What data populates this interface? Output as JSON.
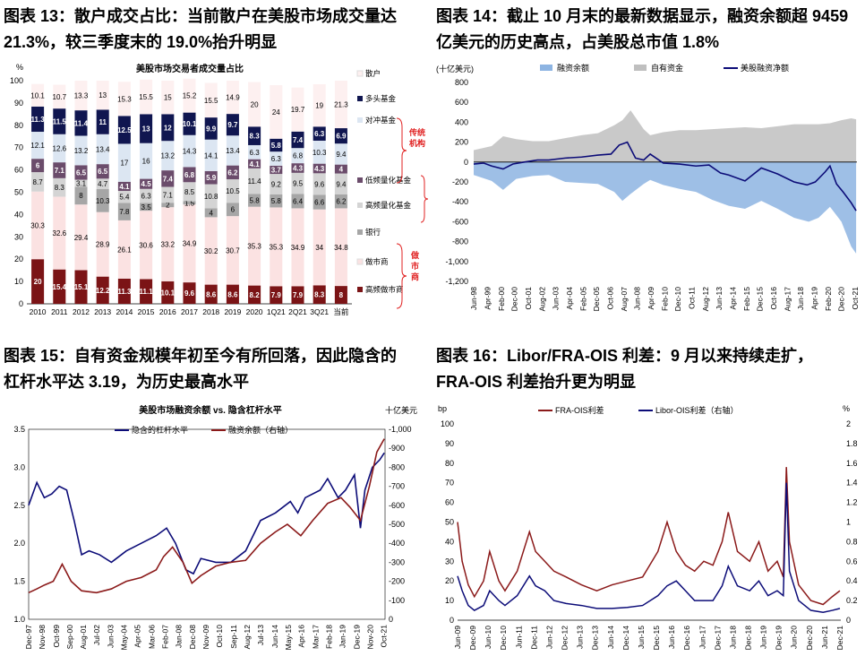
{
  "titles": {
    "fig13_l1": "图表 13：散户成交占比：当前散户在美股市场成交量达",
    "fig13_l2": "21.3%，较三季度末的 19.0%抬升明显",
    "fig14_l1": "图表 14：截止 10 月末的最新数据显示，融资余额超 9459",
    "fig14_l2": "亿美元的历史高点，占美股总市值 1.8%",
    "fig15_l1": "图表 15：自有资金规模年初至今有所回落，因此隐含的",
    "fig15_l2": "杠杆水平达 3.19，为历史最高水平",
    "fig16_l1": "图表 16：Libor/FRA-OIS 利差：9 月以来持续走扩，",
    "fig16_l2": "FRA-OIS 利差抬升更为明显"
  },
  "chart_data": [
    {
      "id": "fig13",
      "type": "bar",
      "stacked": true,
      "title": "美股市场交易者成交量占比",
      "ylabel": "%",
      "ylim": [
        0,
        100
      ],
      "yticks": [
        0,
        10,
        20,
        30,
        40,
        50,
        60,
        70,
        80,
        90,
        100
      ],
      "categories": [
        "2010",
        "2011",
        "2012",
        "2013",
        "2014",
        "2015",
        "2016",
        "2017",
        "2018",
        "2019",
        "2020",
        "1Q21",
        "2Q21",
        "3Q21",
        "当前"
      ],
      "series": [
        {
          "name": "高频做市商",
          "color": "#7b1416",
          "label_color": "#ffffff",
          "values": [
            20,
            15.4,
            15.1,
            12.2,
            11.3,
            11.1,
            10.1,
            9.6,
            8.6,
            8.6,
            8.2,
            7.9,
            7.9,
            8.3,
            8
          ]
        },
        {
          "name": "做市商",
          "color": "#fbe2e2",
          "label_color": "#000000",
          "values": [
            30.3,
            32.6,
            29.4,
            28.9,
            26.1,
            30.6,
            33.2,
            34.9,
            30.2,
            30.7,
            35.3,
            35.3,
            34.9,
            34,
            34.8
          ]
        },
        {
          "name": "银行",
          "color": "#a6a6a6",
          "label_color": "#000000",
          "values": [
            null,
            null,
            8,
            10.3,
            7.8,
            3.5,
            2,
            1.5,
            4,
            6,
            5.8,
            5.8,
            6.4,
            6.6,
            6.2
          ]
        },
        {
          "name": "高频量化基金",
          "color": "#d4d4d4",
          "label_color": "#000000",
          "values": [
            8.7,
            8.3,
            3.1,
            4.7,
            5.4,
            6.3,
            7.1,
            8.5,
            10.8,
            10.5,
            11.4,
            9.2,
            9.5,
            9.6,
            9.4
          ]
        },
        {
          "name": "低频量化基金",
          "color": "#6b4c6b",
          "label_color": "#ffffff",
          "values": [
            6,
            7.1,
            6.5,
            6.5,
            4.1,
            4.5,
            7.4,
            6.8,
            5.9,
            6.2,
            4.1,
            3.7,
            4.3,
            4.3,
            4
          ]
        },
        {
          "name": "对冲基金",
          "color": "#dce6f2",
          "label_color": "#000000",
          "values": [
            12.1,
            12.6,
            13.2,
            13.4,
            17,
            16,
            13.2,
            14.3,
            14.1,
            13.4,
            6.3,
            6.3,
            6.8,
            10.3,
            9.4
          ]
        },
        {
          "name": "多头基金",
          "color": "#101650",
          "label_color": "#ffffff",
          "values": [
            11.3,
            11.5,
            11.4,
            11,
            12.5,
            13,
            12,
            10.1,
            9.9,
            9.7,
            8.3,
            5.8,
            7.4,
            6.3,
            6.9
          ]
        },
        {
          "name": "散户",
          "color": "#fdf0f0",
          "label_color": "#000000",
          "values": [
            10.1,
            10.7,
            13.3,
            13,
            15.3,
            15.5,
            15,
            15.2,
            15.5,
            14.9,
            20,
            24,
            19.7,
            19,
            21.3
          ]
        }
      ],
      "annotations": [
        "传统机构",
        "做市商"
      ]
    },
    {
      "id": "fig14",
      "type": "area",
      "ylabel": "(十亿美元)",
      "ylim": [
        -1200,
        800
      ],
      "yticks": [
        800,
        600,
        400,
        200,
        0,
        -200,
        -400,
        -600,
        -800,
        -1000,
        -1200
      ],
      "xticks": [
        "Jun-98",
        "Apr-99",
        "Feb-00",
        "Dec-00",
        "Oct-01",
        "Aug-02",
        "Jun-03",
        "Apr-04",
        "Feb-05",
        "Dec-05",
        "Oct-06",
        "Aug-07",
        "Jun-08",
        "Apr-09",
        "Feb-10",
        "Dec-10",
        "Oct-11",
        "Aug-12",
        "Jun-13",
        "Apr-14",
        "Feb-15",
        "Dec-15",
        "Oct-16",
        "Aug-17",
        "Jun-18",
        "Apr-19",
        "Feb-20",
        "Dec-20",
        "Oct-21"
      ],
      "x_years": [
        1998.4,
        1999.25,
        2000.1,
        2000.9,
        2001.75,
        2002.6,
        2003.4,
        2004.25,
        2005.1,
        2005.9,
        2006.75,
        2007.6,
        2008.4,
        2009.25,
        2010.1,
        2010.9,
        2011.75,
        2012.6,
        2013.4,
        2014.25,
        2015.1,
        2015.9,
        2016.75,
        2017.6,
        2018.4,
        2019.25,
        2020.1,
        2020.9,
        2021.75
      ],
      "series": [
        {
          "name": "融资余额",
          "color": "#8db4e2",
          "x": [
            1998.4,
            1999.5,
            2000.2,
            2001.0,
            2002.0,
            2003.0,
            2004.0,
            2005.0,
            2006.0,
            2007.0,
            2007.5,
            2008.0,
            2008.8,
            2009.2,
            2010.0,
            2011.0,
            2012.0,
            2013.0,
            2014.0,
            2015.0,
            2016.0,
            2017.0,
            2018.0,
            2018.9,
            2019.5,
            2020.2,
            2020.9,
            2021.5,
            2021.8
          ],
          "values": [
            -130,
            -190,
            -280,
            -170,
            -140,
            -130,
            -200,
            -210,
            -220,
            -300,
            -390,
            -320,
            -220,
            -180,
            -230,
            -270,
            -300,
            -380,
            -440,
            -470,
            -390,
            -470,
            -560,
            -600,
            -560,
            -450,
            -600,
            -850,
            -920
          ]
        },
        {
          "name": "自有资金",
          "color": "#bfbfbf",
          "x": [
            1998.4,
            1999.5,
            2000.2,
            2001.0,
            2002.0,
            2003.0,
            2004.0,
            2005.0,
            2006.0,
            2007.0,
            2007.5,
            2008.0,
            2008.8,
            2009.2,
            2010.0,
            2011.0,
            2012.0,
            2013.0,
            2014.0,
            2015.0,
            2016.0,
            2017.0,
            2018.0,
            2018.9,
            2019.5,
            2020.2,
            2020.9,
            2021.5,
            2021.8
          ],
          "values": [
            120,
            160,
            260,
            230,
            210,
            210,
            240,
            270,
            290,
            370,
            420,
            520,
            330,
            270,
            300,
            320,
            320,
            330,
            340,
            350,
            340,
            360,
            380,
            380,
            380,
            390,
            420,
            440,
            430
          ]
        },
        {
          "name": "美股融资净额",
          "color": "#0c0c78",
          "x": [
            1998.4,
            1999.0,
            1999.5,
            2000.2,
            2000.8,
            2001.5,
            2002.3,
            2003.0,
            2004.0,
            2005.0,
            2006.0,
            2006.8,
            2007.3,
            2007.8,
            2008.3,
            2008.8,
            2009.2,
            2010.0,
            2011.0,
            2012.0,
            2012.8,
            2013.5,
            2014.0,
            2015.0,
            2016.0,
            2016.5,
            2017.0,
            2018.0,
            2018.8,
            2019.3,
            2019.9,
            2020.2,
            2020.6,
            2021.0,
            2021.5,
            2021.8
          ],
          "values": [
            -20,
            -10,
            -40,
            -70,
            -20,
            0,
            20,
            20,
            40,
            50,
            70,
            80,
            170,
            200,
            40,
            20,
            80,
            -10,
            -20,
            -40,
            -30,
            -110,
            -130,
            -190,
            -60,
            -90,
            -120,
            -200,
            -230,
            -200,
            -100,
            -40,
            -220,
            -300,
            -410,
            -490
          ]
        }
      ]
    },
    {
      "id": "fig15",
      "type": "line",
      "title": "美股市场融资余额 vs. 隐含杠杆水平",
      "ylabel_right": "十亿美元",
      "ylim": [
        1.0,
        3.5
      ],
      "yticks": [
        1.0,
        1.5,
        2.0,
        2.5,
        3.0,
        3.5
      ],
      "y2lim": [
        0,
        -1000
      ],
      "y2ticks": [
        "0",
        "-100",
        "-200",
        "-300",
        "-400",
        "-500",
        "-600",
        "-700",
        "-800",
        "-900",
        "-1,000"
      ],
      "xticks": [
        "Dec-97",
        "Nov-98",
        "Oct-99",
        "Sep-00",
        "Aug-01",
        "Jul-02",
        "Jun-03",
        "May-04",
        "Apr-05",
        "Mar-06",
        "Feb-07",
        "Jan-08",
        "Dec-08",
        "Nov-09",
        "Oct-10",
        "Sep-11",
        "Aug-12",
        "Jul-13",
        "Jun-14",
        "May-15",
        "Apr-16",
        "Mar-17",
        "Feb-18",
        "Jan-19",
        "Dec-19",
        "Nov-20",
        "Oct-21"
      ],
      "x_years": [
        1997.95,
        1998.85,
        1999.8,
        2000.7,
        2001.6,
        2002.5,
        2003.45,
        2004.35,
        2005.25,
        2006.2,
        2007.1,
        2008.0,
        2008.95,
        2009.85,
        2010.75,
        2011.7,
        2012.6,
        2013.5,
        2014.45,
        2015.35,
        2016.25,
        2017.2,
        2018.1,
        2019.0,
        2019.95,
        2020.85,
        2021.75
      ],
      "series": [
        {
          "name": "隐含的杠杆水平",
          "axis": "left",
          "color": "#0c0c78",
          "x": [
            1997.95,
            1998.5,
            1999.0,
            1999.5,
            2000.0,
            2000.5,
            2001.0,
            2001.5,
            2002.0,
            2002.7,
            2003.5,
            2004.5,
            2005.5,
            2006.5,
            2007.2,
            2007.8,
            2008.5,
            2009.0,
            2009.5,
            2010.5,
            2011.5,
            2012.5,
            2013.5,
            2014.5,
            2015.5,
            2016.0,
            2016.5,
            2017.5,
            2018.0,
            2018.7,
            2019.2,
            2019.8,
            2020.2,
            2020.5,
            2021.0,
            2021.5,
            2021.8
          ],
          "values": [
            2.5,
            2.8,
            2.6,
            2.65,
            2.75,
            2.7,
            2.3,
            1.85,
            1.9,
            1.85,
            1.75,
            1.9,
            2.0,
            2.1,
            2.2,
            2.0,
            1.65,
            1.6,
            1.8,
            1.75,
            1.75,
            1.9,
            2.3,
            2.4,
            2.55,
            2.4,
            2.6,
            2.7,
            2.85,
            2.6,
            2.7,
            2.9,
            2.2,
            2.7,
            3.0,
            3.1,
            3.19
          ]
        },
        {
          "name": "融资余额（右轴）",
          "axis": "right",
          "color": "#8b1a1a",
          "x": [
            1997.95,
            1998.5,
            1999.0,
            1999.6,
            2000.2,
            2000.8,
            2001.5,
            2002.5,
            2003.5,
            2004.5,
            2005.5,
            2006.5,
            2007.0,
            2007.6,
            2008.3,
            2008.9,
            2009.5,
            2010.5,
            2011.5,
            2012.5,
            2013.5,
            2014.5,
            2015.3,
            2016.2,
            2017.0,
            2018.0,
            2018.9,
            2019.5,
            2020.2,
            2020.8,
            2021.3,
            2021.8
          ],
          "values": [
            -140,
            -160,
            -180,
            -200,
            -290,
            -200,
            -150,
            -140,
            -160,
            -200,
            -220,
            -260,
            -330,
            -380,
            -300,
            -190,
            -230,
            -280,
            -300,
            -310,
            -400,
            -460,
            -500,
            -440,
            -520,
            -610,
            -640,
            -590,
            -520,
            -700,
            -880,
            -950
          ]
        }
      ]
    },
    {
      "id": "fig16",
      "type": "line",
      "ylabel": "bp",
      "ylabel_right": "%",
      "ylim": [
        0,
        100
      ],
      "yticks": [
        0,
        10,
        20,
        30,
        40,
        50,
        60,
        70,
        80,
        90,
        100
      ],
      "y2lim": [
        0,
        2
      ],
      "y2ticks": [
        "0",
        "0.2",
        "0.4",
        "0.6",
        "0.8",
        "1",
        "1.2",
        "1.4",
        "1.6",
        "1.8",
        "2"
      ],
      "xticks": [
        "Jun-09",
        "Dec-09",
        "Jun-10",
        "Dec-10",
        "Jun-11",
        "Dec-11",
        "Jun-12",
        "Dec-12",
        "Jun-13",
        "Dec-13",
        "Jun-14",
        "Dec-14",
        "Jun-15",
        "Dec-15",
        "Jun-16",
        "Dec-16",
        "Jun-17",
        "Dec-17",
        "Jun-18",
        "Dec-18",
        "Jun-19",
        "Dec-19",
        "Jun-20",
        "Dec-20",
        "Jun-21",
        "Dec-21"
      ],
      "x_years": [
        2009.45,
        2009.95,
        2010.45,
        2010.95,
        2011.45,
        2011.95,
        2012.45,
        2012.95,
        2013.45,
        2013.95,
        2014.45,
        2014.95,
        2015.45,
        2015.95,
        2016.45,
        2016.95,
        2017.45,
        2017.95,
        2018.45,
        2018.95,
        2019.45,
        2019.95,
        2020.45,
        2020.95,
        2021.45,
        2021.95
      ],
      "series": [
        {
          "name": "FRA-OIS利差",
          "axis": "left",
          "color": "#8b1a1a",
          "x": [
            2009.45,
            2009.6,
            2009.8,
            2010.0,
            2010.3,
            2010.5,
            2010.8,
            2011.0,
            2011.4,
            2011.8,
            2012.0,
            2012.3,
            2012.6,
            2013.0,
            2013.5,
            2014.0,
            2014.5,
            2015.0,
            2015.5,
            2016.0,
            2016.3,
            2016.6,
            2016.9,
            2017.2,
            2017.5,
            2017.8,
            2018.1,
            2018.3,
            2018.6,
            2019.0,
            2019.3,
            2019.6,
            2019.9,
            2020.1,
            2020.2,
            2020.3,
            2020.6,
            2021.0,
            2021.4,
            2021.7,
            2021.95
          ],
          "values": [
            50,
            30,
            18,
            12,
            20,
            35,
            20,
            15,
            25,
            45,
            35,
            30,
            25,
            22,
            18,
            15,
            18,
            20,
            22,
            35,
            50,
            35,
            28,
            25,
            30,
            28,
            40,
            55,
            35,
            30,
            40,
            25,
            30,
            22,
            78,
            40,
            18,
            10,
            8,
            12,
            15
          ]
        },
        {
          "name": "Libor-OIS利差（右轴）",
          "axis": "right",
          "color": "#0c0c78",
          "x": [
            2009.45,
            2009.6,
            2009.8,
            2010.0,
            2010.3,
            2010.5,
            2010.8,
            2011.0,
            2011.4,
            2011.8,
            2012.0,
            2012.3,
            2012.6,
            2013.0,
            2013.5,
            2014.0,
            2014.5,
            2015.0,
            2015.5,
            2016.0,
            2016.3,
            2016.6,
            2016.9,
            2017.2,
            2017.5,
            2017.8,
            2018.1,
            2018.3,
            2018.6,
            2019.0,
            2019.3,
            2019.6,
            2019.9,
            2020.1,
            2020.2,
            2020.3,
            2020.6,
            2021.0,
            2021.4,
            2021.7,
            2021.95
          ],
          "values": [
            0.45,
            0.3,
            0.15,
            0.1,
            0.15,
            0.3,
            0.2,
            0.15,
            0.25,
            0.45,
            0.35,
            0.3,
            0.2,
            0.17,
            0.15,
            0.12,
            0.12,
            0.13,
            0.15,
            0.25,
            0.35,
            0.4,
            0.3,
            0.2,
            0.2,
            0.2,
            0.35,
            0.55,
            0.35,
            0.3,
            0.4,
            0.25,
            0.3,
            0.25,
            1.4,
            0.5,
            0.2,
            0.1,
            0.08,
            0.1,
            0.12
          ]
        }
      ]
    }
  ]
}
